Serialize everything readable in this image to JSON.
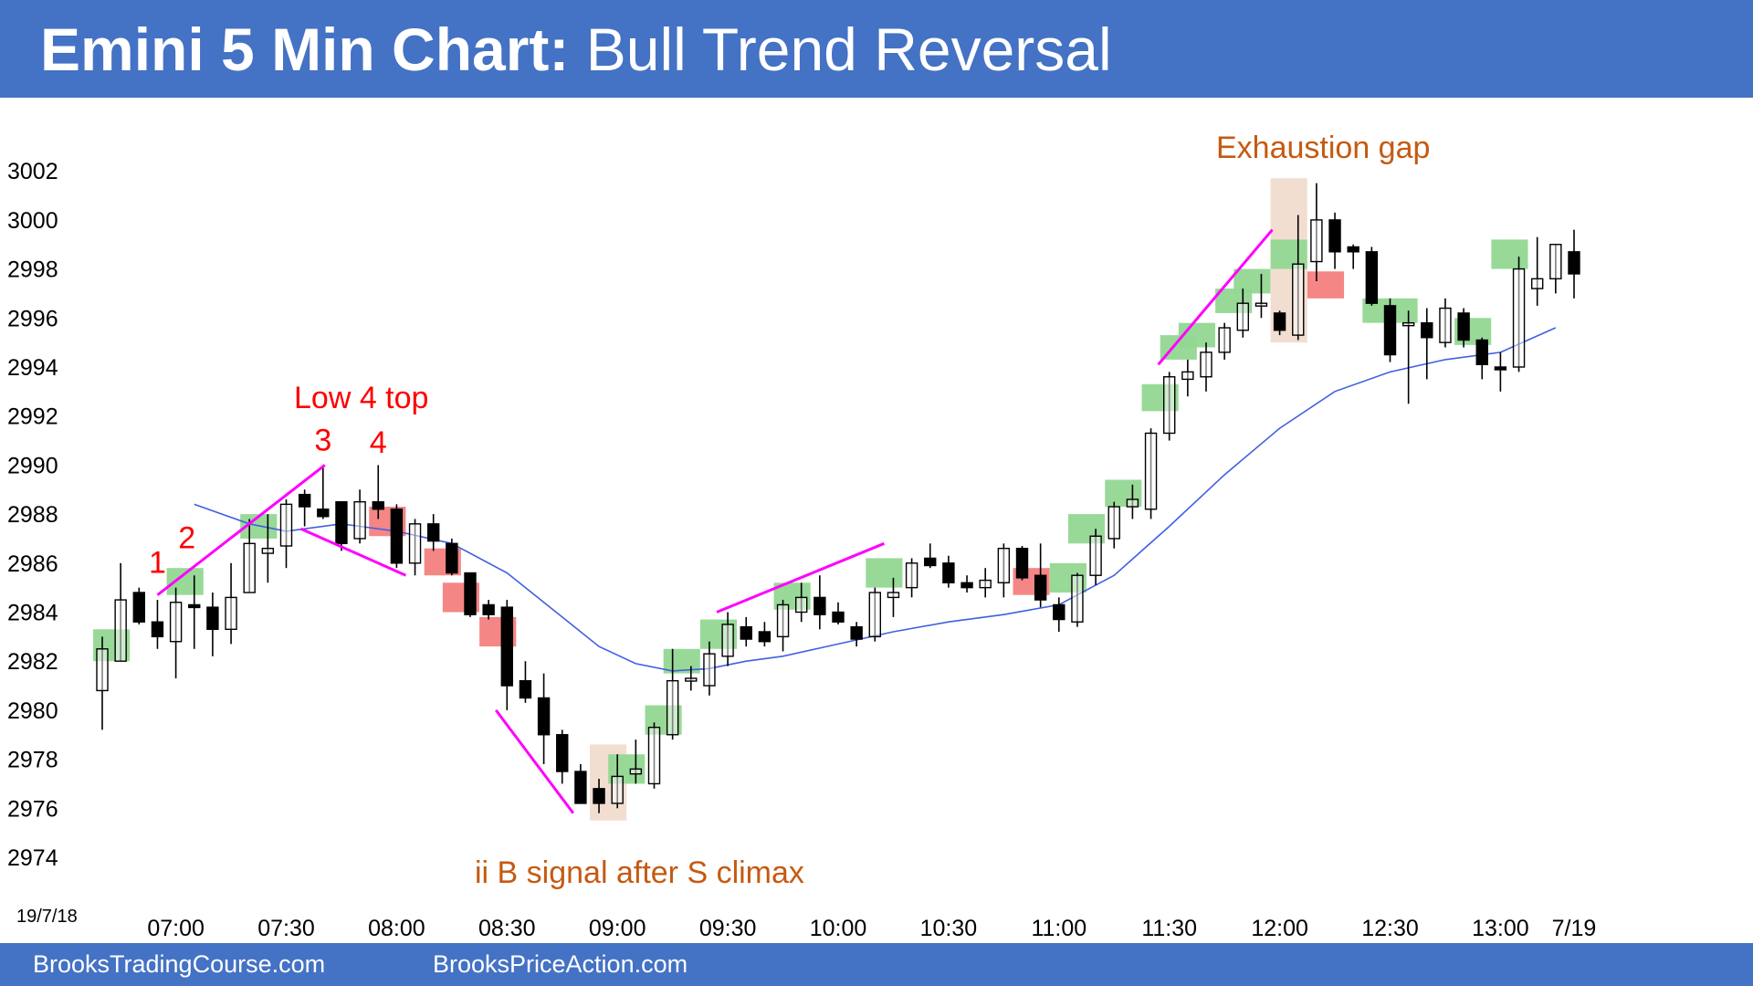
{
  "header": {
    "title_bold": "Emini 5 Min Chart:",
    "title_rest": "Bull Trend Reversal",
    "background": "#4472c4"
  },
  "footer": {
    "left_text": "BrooksTradingCourse.com",
    "right_text": "BrooksPriceAction.com"
  },
  "chart_data": {
    "type": "candlestick",
    "date_label": "19/7/18",
    "ylim": [
      2973,
      3003
    ],
    "yticks": [
      2974,
      2976,
      2978,
      2980,
      2982,
      2984,
      2986,
      2988,
      2990,
      2992,
      2994,
      2996,
      2998,
      3000,
      3002
    ],
    "xticks": [
      {
        "bar": 4,
        "label": "07:00"
      },
      {
        "bar": 10,
        "label": "07:30"
      },
      {
        "bar": 16,
        "label": "08:00"
      },
      {
        "bar": 22,
        "label": "08:30"
      },
      {
        "bar": 28,
        "label": "09:00"
      },
      {
        "bar": 34,
        "label": "09:30"
      },
      {
        "bar": 40,
        "label": "10:00"
      },
      {
        "bar": 46,
        "label": "10:30"
      },
      {
        "bar": 52,
        "label": "11:00"
      },
      {
        "bar": 58,
        "label": "11:30"
      },
      {
        "bar": 64,
        "label": "12:00"
      },
      {
        "bar": 70,
        "label": "12:30"
      },
      {
        "bar": 76,
        "label": "13:00"
      },
      {
        "bar": 80,
        "label": "7/19"
      }
    ],
    "bars": [
      {
        "o": 2980.8,
        "h": 2983.0,
        "l": 2979.2,
        "c": 2982.5
      },
      {
        "o": 2982.0,
        "h": 2986.0,
        "l": 2982.0,
        "c": 2984.5
      },
      {
        "o": 2984.8,
        "h": 2985.0,
        "l": 2983.5,
        "c": 2983.6
      },
      {
        "o": 2983.6,
        "h": 2984.5,
        "l": 2982.5,
        "c": 2983.0
      },
      {
        "o": 2982.8,
        "h": 2985.0,
        "l": 2981.3,
        "c": 2984.4
      },
      {
        "o": 2984.3,
        "h": 2985.5,
        "l": 2982.5,
        "c": 2984.2
      },
      {
        "o": 2984.2,
        "h": 2984.8,
        "l": 2982.2,
        "c": 2983.3
      },
      {
        "o": 2983.3,
        "h": 2986.0,
        "l": 2982.7,
        "c": 2984.6
      },
      {
        "o": 2984.8,
        "h": 2987.8,
        "l": 2984.8,
        "c": 2986.8
      },
      {
        "o": 2986.4,
        "h": 2988.0,
        "l": 2985.2,
        "c": 2986.6
      },
      {
        "o": 2986.7,
        "h": 2988.6,
        "l": 2985.8,
        "c": 2988.4
      },
      {
        "o": 2988.8,
        "h": 2989.0,
        "l": 2987.5,
        "c": 2988.3
      },
      {
        "o": 2988.2,
        "h": 2990.0,
        "l": 2987.8,
        "c": 2987.9
      },
      {
        "o": 2988.5,
        "h": 2988.5,
        "l": 2986.5,
        "c": 2986.8
      },
      {
        "o": 2987.0,
        "h": 2989.0,
        "l": 2986.8,
        "c": 2988.5
      },
      {
        "o": 2988.5,
        "h": 2990.0,
        "l": 2987.8,
        "c": 2988.2
      },
      {
        "o": 2988.2,
        "h": 2988.4,
        "l": 2985.8,
        "c": 2986.0
      },
      {
        "o": 2986.0,
        "h": 2987.8,
        "l": 2985.5,
        "c": 2987.6
      },
      {
        "o": 2987.6,
        "h": 2988.0,
        "l": 2986.5,
        "c": 2986.9
      },
      {
        "o": 2986.8,
        "h": 2987.0,
        "l": 2985.5,
        "c": 2985.6
      },
      {
        "o": 2985.6,
        "h": 2985.6,
        "l": 2983.8,
        "c": 2983.9
      },
      {
        "o": 2984.3,
        "h": 2984.5,
        "l": 2983.7,
        "c": 2983.9
      },
      {
        "o": 2984.2,
        "h": 2984.5,
        "l": 2980.0,
        "c": 2981.0
      },
      {
        "o": 2981.2,
        "h": 2982.0,
        "l": 2980.3,
        "c": 2980.5
      },
      {
        "o": 2980.5,
        "h": 2981.5,
        "l": 2977.8,
        "c": 2979.0
      },
      {
        "o": 2979.0,
        "h": 2979.2,
        "l": 2977.0,
        "c": 2977.5
      },
      {
        "o": 2977.5,
        "h": 2977.8,
        "l": 2976.2,
        "c": 2976.2
      },
      {
        "o": 2976.8,
        "h": 2977.2,
        "l": 2975.8,
        "c": 2976.2
      },
      {
        "o": 2976.2,
        "h": 2978.2,
        "l": 2976.0,
        "c": 2977.3
      },
      {
        "o": 2977.4,
        "h": 2978.8,
        "l": 2977.0,
        "c": 2977.6
      },
      {
        "o": 2977.0,
        "h": 2979.5,
        "l": 2976.8,
        "c": 2979.3
      },
      {
        "o": 2979.0,
        "h": 2982.5,
        "l": 2978.8,
        "c": 2981.2
      },
      {
        "o": 2981.2,
        "h": 2981.8,
        "l": 2980.8,
        "c": 2981.3
      },
      {
        "o": 2981.0,
        "h": 2982.8,
        "l": 2980.6,
        "c": 2982.3
      },
      {
        "o": 2982.2,
        "h": 2984.0,
        "l": 2981.8,
        "c": 2983.5
      },
      {
        "o": 2983.4,
        "h": 2983.8,
        "l": 2982.6,
        "c": 2982.9
      },
      {
        "o": 2983.2,
        "h": 2983.6,
        "l": 2982.6,
        "c": 2982.8
      },
      {
        "o": 2983.0,
        "h": 2984.5,
        "l": 2982.4,
        "c": 2984.3
      },
      {
        "o": 2984.0,
        "h": 2985.2,
        "l": 2983.6,
        "c": 2984.6
      },
      {
        "o": 2984.6,
        "h": 2985.5,
        "l": 2983.3,
        "c": 2983.9
      },
      {
        "o": 2984.0,
        "h": 2984.4,
        "l": 2983.5,
        "c": 2983.6
      },
      {
        "o": 2983.4,
        "h": 2983.6,
        "l": 2982.6,
        "c": 2982.9
      },
      {
        "o": 2983.0,
        "h": 2985.0,
        "l": 2982.8,
        "c": 2984.8
      },
      {
        "o": 2984.6,
        "h": 2985.4,
        "l": 2983.8,
        "c": 2984.8
      },
      {
        "o": 2985.0,
        "h": 2986.2,
        "l": 2984.6,
        "c": 2986.0
      },
      {
        "o": 2986.2,
        "h": 2986.8,
        "l": 2985.8,
        "c": 2985.9
      },
      {
        "o": 2986.0,
        "h": 2986.3,
        "l": 2985.0,
        "c": 2985.2
      },
      {
        "o": 2985.2,
        "h": 2985.5,
        "l": 2984.8,
        "c": 2985.0
      },
      {
        "o": 2985.0,
        "h": 2985.8,
        "l": 2984.6,
        "c": 2985.3
      },
      {
        "o": 2985.2,
        "h": 2986.8,
        "l": 2984.6,
        "c": 2986.6
      },
      {
        "o": 2986.6,
        "h": 2986.7,
        "l": 2985.3,
        "c": 2985.4
      },
      {
        "o": 2985.5,
        "h": 2986.8,
        "l": 2984.2,
        "c": 2984.5
      },
      {
        "o": 2984.3,
        "h": 2984.6,
        "l": 2983.2,
        "c": 2983.7
      },
      {
        "o": 2983.6,
        "h": 2985.6,
        "l": 2983.4,
        "c": 2985.5
      },
      {
        "o": 2985.5,
        "h": 2987.4,
        "l": 2985.1,
        "c": 2987.1
      },
      {
        "o": 2987.0,
        "h": 2988.5,
        "l": 2986.6,
        "c": 2988.3
      },
      {
        "o": 2988.3,
        "h": 2989.2,
        "l": 2987.8,
        "c": 2988.6
      },
      {
        "o": 2988.2,
        "h": 2991.5,
        "l": 2987.8,
        "c": 2991.3
      },
      {
        "o": 2991.3,
        "h": 2993.8,
        "l": 2991.0,
        "c": 2993.6
      },
      {
        "o": 2993.5,
        "h": 2994.3,
        "l": 2992.8,
        "c": 2993.8
      },
      {
        "o": 2993.6,
        "h": 2995.0,
        "l": 2993.0,
        "c": 2994.6
      },
      {
        "o": 2994.6,
        "h": 2995.8,
        "l": 2994.3,
        "c": 2995.6
      },
      {
        "o": 2995.5,
        "h": 2997.2,
        "l": 2995.2,
        "c": 2996.6
      },
      {
        "o": 2996.5,
        "h": 2997.8,
        "l": 2996.0,
        "c": 2996.6
      },
      {
        "o": 2996.2,
        "h": 2996.3,
        "l": 2995.3,
        "c": 2995.5
      },
      {
        "o": 2995.3,
        "h": 3000.2,
        "l": 2995.1,
        "c": 2998.2
      },
      {
        "o": 2998.3,
        "h": 3001.5,
        "l": 2997.5,
        "c": 3000.0
      },
      {
        "o": 3000.0,
        "h": 3000.3,
        "l": 2998.0,
        "c": 2998.7
      },
      {
        "o": 2998.9,
        "h": 2999.0,
        "l": 2998.0,
        "c": 2998.7
      },
      {
        "o": 2998.7,
        "h": 2998.9,
        "l": 2996.5,
        "c": 2996.6
      },
      {
        "o": 2996.5,
        "h": 2996.8,
        "l": 2994.2,
        "c": 2994.5
      },
      {
        "o": 2995.7,
        "h": 2996.3,
        "l": 2992.5,
        "c": 2995.8
      },
      {
        "o": 2995.8,
        "h": 2996.4,
        "l": 2993.5,
        "c": 2995.2
      },
      {
        "o": 2995.0,
        "h": 2996.8,
        "l": 2994.8,
        "c": 2996.4
      },
      {
        "o": 2996.2,
        "h": 2996.4,
        "l": 2994.8,
        "c": 2995.1
      },
      {
        "o": 2995.1,
        "h": 2995.2,
        "l": 2993.5,
        "c": 2994.1
      },
      {
        "o": 2994.0,
        "h": 2994.6,
        "l": 2993.0,
        "c": 2993.9
      },
      {
        "o": 2994.0,
        "h": 2998.5,
        "l": 2993.8,
        "c": 2998.0
      },
      {
        "o": 2997.2,
        "h": 2999.3,
        "l": 2996.5,
        "c": 2997.6
      },
      {
        "o": 2997.6,
        "h": 2999.0,
        "l": 2997.0,
        "c": 2999.0
      },
      {
        "o": 2998.7,
        "h": 2999.6,
        "l": 2996.8,
        "c": 2997.8
      }
    ],
    "ema": [
      {
        "bar": 5,
        "v": 2988.4
      },
      {
        "bar": 8,
        "v": 2987.6
      },
      {
        "bar": 10,
        "v": 2987.3
      },
      {
        "bar": 13,
        "v": 2987.6
      },
      {
        "bar": 16,
        "v": 2987.3
      },
      {
        "bar": 19,
        "v": 2986.8
      },
      {
        "bar": 22,
        "v": 2985.6
      },
      {
        "bar": 25,
        "v": 2983.8
      },
      {
        "bar": 27,
        "v": 2982.6
      },
      {
        "bar": 29,
        "v": 2981.9
      },
      {
        "bar": 31,
        "v": 2981.6
      },
      {
        "bar": 33,
        "v": 2981.7
      },
      {
        "bar": 35,
        "v": 2982.0
      },
      {
        "bar": 37,
        "v": 2982.2
      },
      {
        "bar": 40,
        "v": 2982.7
      },
      {
        "bar": 43,
        "v": 2983.2
      },
      {
        "bar": 46,
        "v": 2983.6
      },
      {
        "bar": 49,
        "v": 2983.9
      },
      {
        "bar": 52,
        "v": 2984.3
      },
      {
        "bar": 55,
        "v": 2985.5
      },
      {
        "bar": 58,
        "v": 2987.5
      },
      {
        "bar": 61,
        "v": 2989.6
      },
      {
        "bar": 64,
        "v": 2991.5
      },
      {
        "bar": 67,
        "v": 2993.0
      },
      {
        "bar": 70,
        "v": 2993.8
      },
      {
        "bar": 73,
        "v": 2994.3
      },
      {
        "bar": 76,
        "v": 2994.6
      },
      {
        "bar": 79,
        "v": 2995.6
      }
    ],
    "highlights": [
      {
        "color": "green",
        "bar_from": 0,
        "bar_to": 1,
        "low": 2982.0,
        "high": 2983.3
      },
      {
        "color": "green",
        "bar_from": 4,
        "bar_to": 5,
        "low": 2984.7,
        "high": 2985.8
      },
      {
        "color": "green",
        "bar_from": 8,
        "bar_to": 9,
        "low": 2987.0,
        "high": 2988.0
      },
      {
        "color": "red",
        "bar_from": 15,
        "bar_to": 16,
        "low": 2987.1,
        "high": 2988.3
      },
      {
        "color": "red",
        "bar_from": 18,
        "bar_to": 19,
        "low": 2985.5,
        "high": 2986.6
      },
      {
        "color": "red",
        "bar_from": 19,
        "bar_to": 20,
        "low": 2984.0,
        "high": 2985.2
      },
      {
        "color": "red",
        "bar_from": 21,
        "bar_to": 22,
        "low": 2982.6,
        "high": 2983.8
      },
      {
        "color": "tan",
        "bar_from": 27,
        "bar_to": 28,
        "low": 2975.5,
        "high": 2978.6
      },
      {
        "color": "green",
        "bar_from": 28,
        "bar_to": 29,
        "low": 2977.0,
        "high": 2978.2
      },
      {
        "color": "green",
        "bar_from": 30,
        "bar_to": 31,
        "low": 2979.0,
        "high": 2980.2
      },
      {
        "color": "green",
        "bar_from": 31,
        "bar_to": 32,
        "low": 2981.5,
        "high": 2982.5
      },
      {
        "color": "green",
        "bar_from": 33,
        "bar_to": 34,
        "low": 2982.5,
        "high": 2983.7
      },
      {
        "color": "green",
        "bar_from": 37,
        "bar_to": 38,
        "low": 2984.1,
        "high": 2985.2
      },
      {
        "color": "green",
        "bar_from": 42,
        "bar_to": 43,
        "low": 2985.0,
        "high": 2986.2
      },
      {
        "color": "red",
        "bar_from": 50,
        "bar_to": 51,
        "low": 2984.7,
        "high": 2985.8
      },
      {
        "color": "green",
        "bar_from": 52,
        "bar_to": 53,
        "low": 2984.8,
        "high": 2986.0
      },
      {
        "color": "green",
        "bar_from": 53,
        "bar_to": 54,
        "low": 2986.8,
        "high": 2988.0
      },
      {
        "color": "green",
        "bar_from": 55,
        "bar_to": 56,
        "low": 2988.3,
        "high": 2989.4
      },
      {
        "color": "green",
        "bar_from": 57,
        "bar_to": 58,
        "low": 2992.2,
        "high": 2993.3
      },
      {
        "color": "green",
        "bar_from": 58,
        "bar_to": 59,
        "low": 2994.3,
        "high": 2995.3
      },
      {
        "color": "green",
        "bar_from": 59,
        "bar_to": 60,
        "low": 2994.8,
        "high": 2995.8
      },
      {
        "color": "green",
        "bar_from": 61,
        "bar_to": 62,
        "low": 2996.2,
        "high": 2997.2
      },
      {
        "color": "green",
        "bar_from": 62,
        "bar_to": 63,
        "low": 2997.0,
        "high": 2998.0
      },
      {
        "color": "tan",
        "bar_from": 64,
        "bar_to": 65,
        "low": 2995.0,
        "high": 3001.7
      },
      {
        "color": "green",
        "bar_from": 64,
        "bar_to": 65,
        "low": 2998.0,
        "high": 2999.2
      },
      {
        "color": "red",
        "bar_from": 66,
        "bar_to": 67,
        "low": 2996.8,
        "high": 2997.9
      },
      {
        "color": "green",
        "bar_from": 69,
        "bar_to": 71,
        "low": 2995.8,
        "high": 2996.8
      },
      {
        "color": "green",
        "bar_from": 74,
        "bar_to": 75,
        "low": 2994.9,
        "high": 2996.0
      },
      {
        "color": "green",
        "bar_from": 76,
        "bar_to": 77,
        "low": 2998.0,
        "high": 2999.2
      }
    ],
    "trendlines": [
      {
        "x1": 3.0,
        "y1": 2984.7,
        "x2": 12.1,
        "y2": 2990.0
      },
      {
        "x1": 10.8,
        "y1": 2987.4,
        "x2": 16.5,
        "y2": 2985.5
      },
      {
        "x1": 21.4,
        "y1": 2980.0,
        "x2": 25.6,
        "y2": 2975.8
      },
      {
        "x1": 33.4,
        "y1": 2984.0,
        "x2": 42.5,
        "y2": 2986.8
      },
      {
        "x1": 57.4,
        "y1": 2994.1,
        "x2": 63.6,
        "y2": 2999.6
      }
    ],
    "annotations": {
      "low4_top": "Low 4 top",
      "exhaustion_gap": "Exhaustion gap",
      "ii_b_signal": "ii B signal after S climax",
      "count_labels": [
        {
          "text": "1",
          "bar": 3.0,
          "price": 2985.6
        },
        {
          "text": "2",
          "bar": 4.6,
          "price": 2986.6
        },
        {
          "text": "3",
          "bar": 12.0,
          "price": 2990.6
        },
        {
          "text": "4",
          "bar": 15.0,
          "price": 2990.5
        }
      ]
    },
    "colors": {
      "green_box": "#92d792",
      "red_box": "#f38080",
      "tan_box": "#eed3c1",
      "trendline": "#ff00ff",
      "ema": "#4060e0",
      "annotation_orange": "#c55a11",
      "count_red": "#ff0000"
    }
  }
}
